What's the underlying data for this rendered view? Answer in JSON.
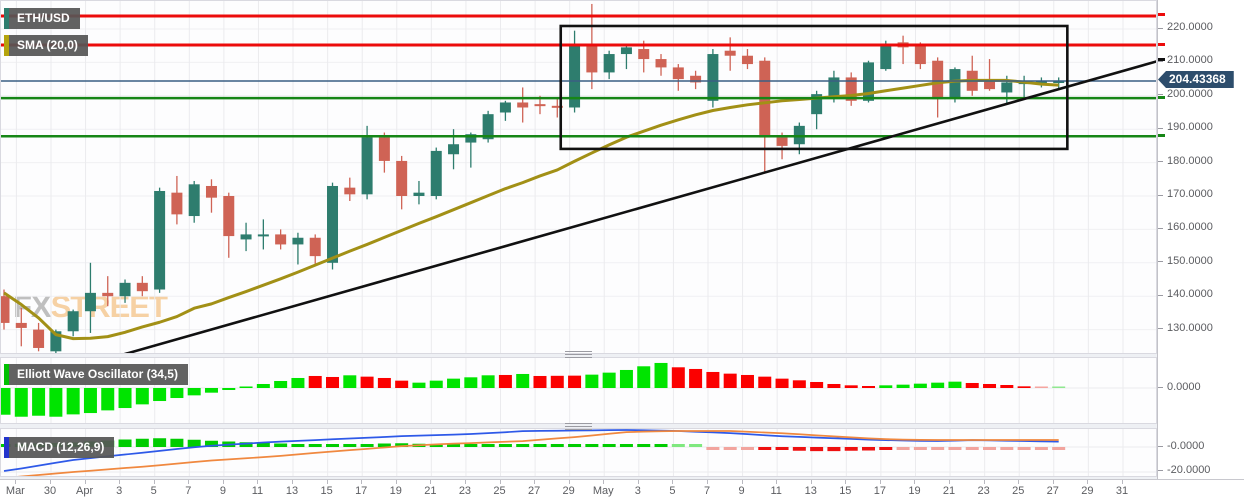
{
  "header": {
    "symbol_badge": "ETH/USD",
    "sma_badge": "SMA (20,0)"
  },
  "watermark": {
    "part1": "FX",
    "part2": "STREET"
  },
  "price_badge": "204.43368",
  "panels": {
    "ewo_label": "Elliott Wave Oscillator (34,5)",
    "macd_label": "MACD (12,26,9)"
  },
  "colors": {
    "up": "#2e7d6e",
    "down": "#cf6355",
    "sma": "#a29016",
    "level_red": "#ec0b0b",
    "level_green": "#168616",
    "level_blue": "#3a5f84",
    "trend": "#111111",
    "box": "#111111",
    "ewo_up": "#00e400",
    "ewo_down": "#fb0000",
    "ewo_light_up": "#90e890",
    "ewo_light_down": "#f5a5a0",
    "macd_line": "#2e59e8",
    "signal_line": "#f0883f",
    "hist_up": "#00cc00",
    "hist_light_up": "#7fe87f",
    "hist_down": "#ee1010",
    "hist_light_down": "#f2a49e",
    "grid": "#ebebee",
    "badge_bg": "#565656",
    "price_badge_bg": "#2d4d6c",
    "watermark_fx": "#b0b0b0",
    "watermark_street": "#f5c78e"
  },
  "chart_data": {
    "type": "candlestick",
    "symbol": "ETH/USD",
    "title": "ETH/USD daily chart with SMA(20), Elliott Wave Oscillator (34,5) and MACD (12,26,9)",
    "x_labels": [
      "Mar",
      "30",
      "Apr",
      "3",
      "5",
      "7",
      "9",
      "11",
      "13",
      "15",
      "17",
      "19",
      "21",
      "23",
      "25",
      "27",
      "29",
      "May",
      "3",
      "5",
      "7",
      "9",
      "11",
      "13",
      "15",
      "17",
      "19",
      "21",
      "23",
      "25",
      "27",
      "29",
      "31"
    ],
    "y_ticks": [
      220,
      210,
      200,
      190,
      180,
      170,
      160,
      150,
      140,
      130
    ],
    "y_tick_decimals": 4,
    "ylim": [
      122.5,
      228.4
    ],
    "current_price": 204.43368,
    "candles": [
      [
        140,
        142,
        130,
        132
      ],
      [
        132,
        136.5,
        125,
        130.5
      ],
      [
        130,
        132,
        123.5,
        124.5
      ],
      [
        123.5,
        130,
        122.5,
        129.5
      ],
      [
        129.5,
        136,
        128,
        135.5
      ],
      [
        135.5,
        150,
        129,
        141
      ],
      [
        141,
        146,
        137,
        140
      ],
      [
        140,
        145,
        138,
        144
      ],
      [
        144,
        146,
        140,
        141.5
      ],
      [
        142,
        172.5,
        141,
        171.5
      ],
      [
        171,
        176,
        161.5,
        164.5
      ],
      [
        164,
        174.5,
        162,
        173.5
      ],
      [
        173,
        175,
        165,
        169.5
      ],
      [
        170,
        171,
        151.5,
        158
      ],
      [
        157,
        162,
        153.5,
        158.5
      ],
      [
        158,
        163,
        154,
        158.5
      ],
      [
        158.5,
        160,
        154,
        155.5
      ],
      [
        155.5,
        159,
        149.5,
        157.5
      ],
      [
        157.5,
        158.5,
        149,
        152
      ],
      [
        150,
        174,
        148,
        173
      ],
      [
        172.5,
        175.5,
        168.5,
        170.5
      ],
      [
        170.5,
        191,
        169,
        187.5
      ],
      [
        187.5,
        189,
        177,
        180.5
      ],
      [
        180.5,
        182,
        166,
        170
      ],
      [
        170,
        174.5,
        167.5,
        171
      ],
      [
        170,
        184.5,
        169,
        183.5
      ],
      [
        182.5,
        190,
        178,
        185.5
      ],
      [
        186,
        189,
        178.5,
        188.5
      ],
      [
        187,
        195.5,
        186,
        194.5
      ],
      [
        195,
        198.5,
        192.5,
        198
      ],
      [
        198,
        202.5,
        192,
        196.5
      ],
      [
        197.5,
        200,
        194.5,
        197
      ],
      [
        197,
        199.5,
        193.5,
        196.5
      ],
      [
        196.5,
        219.5,
        195,
        215.5
      ],
      [
        215.5,
        227.5,
        202,
        207
      ],
      [
        207,
        213.5,
        205,
        212.5
      ],
      [
        212.5,
        215.5,
        208,
        214.5
      ],
      [
        214,
        216.5,
        207,
        211
      ],
      [
        211,
        212.5,
        206,
        208.5
      ],
      [
        208.5,
        209.5,
        201.5,
        205
      ],
      [
        206,
        207.5,
        202,
        204
      ],
      [
        198.5,
        214,
        196.5,
        212.5
      ],
      [
        213.5,
        217.5,
        207.5,
        212
      ],
      [
        212,
        214,
        208,
        209.5
      ],
      [
        210.5,
        211.5,
        177,
        187.5
      ],
      [
        187.5,
        189,
        181,
        185
      ],
      [
        185.5,
        192,
        182.5,
        191
      ],
      [
        194.5,
        201.5,
        190,
        200.5
      ],
      [
        199.5,
        207.5,
        198,
        205.5
      ],
      [
        205.5,
        207,
        197,
        198.5
      ],
      [
        198.5,
        210.5,
        198,
        210
      ],
      [
        208,
        216.5,
        207.5,
        215.5
      ],
      [
        216,
        218,
        209.5,
        214.5
      ],
      [
        215.5,
        216,
        208,
        209.5
      ],
      [
        210.5,
        211.5,
        193.5,
        199
      ],
      [
        199.5,
        208.5,
        198,
        208
      ],
      [
        207.5,
        212,
        200,
        201.5
      ],
      [
        205,
        211,
        201.5,
        202
      ],
      [
        201,
        206,
        197.5,
        204
      ],
      [
        203.5,
        206,
        199,
        204.5
      ],
      [
        204,
        205.5,
        202.5,
        204.4
      ],
      [
        204,
        205.5,
        202,
        204.43
      ]
    ],
    "sma_values": [
      141,
      137.5,
      133.5,
      128.5,
      127.3,
      127.4,
      127.9,
      129.2,
      130.8,
      132.2,
      133.9,
      136.4,
      137.7,
      139.6,
      141.4,
      143.3,
      145.2,
      147.2,
      149.3,
      151.4,
      153.5,
      155.5,
      157.6,
      159.7,
      161.8,
      163.8,
      165.9,
      168.0,
      170.1,
      172.2,
      174.0,
      176.0,
      177.8,
      180.4,
      182.9,
      185.3,
      187.6,
      189.4,
      191.2,
      192.8,
      194.3,
      195.6,
      196.5,
      197.3,
      197.9,
      198.5,
      198.9,
      199.3,
      199.7,
      200.1,
      200.7,
      201.5,
      202.3,
      203.1,
      203.9,
      204.4,
      204.6,
      204.6,
      204.6,
      204.1,
      203.5,
      203.2
    ],
    "levels": [
      {
        "price": 223.9,
        "color": "level_red",
        "width": 3
      },
      {
        "price": 215.2,
        "color": "level_red",
        "width": 3
      },
      {
        "price": 204.43,
        "color": "level_blue",
        "width": 1.5
      },
      {
        "price": 199.3,
        "color": "level_green",
        "width": 2.5
      },
      {
        "price": 187.9,
        "color": "level_green",
        "width": 2.5
      }
    ],
    "trendline": {
      "d1": 6.8,
      "p1": 122.4,
      "d2": 66.8,
      "p2": 210.5
    },
    "box": {
      "d1": 32.2,
      "d2": 61.5,
      "p_top": 220.9,
      "p_bottom": 184.1
    },
    "ewo": {
      "label": "Elliott Wave Oscillator (34,5)",
      "axis_label": "0.0000",
      "values": [
        -8.0,
        -8.6,
        -8.3,
        -8.6,
        -7.9,
        -7.5,
        -6.7,
        -6.0,
        -4.9,
        -3.9,
        -3.0,
        -2.2,
        -1.4,
        -0.6,
        0.3,
        1.2,
        2.1,
        3.0,
        3.6,
        3.3,
        3.8,
        3.4,
        3.0,
        2.2,
        1.6,
        2.2,
        2.8,
        3.2,
        3.8,
        3.9,
        4.2,
        3.6,
        3.65,
        3.7,
        4.0,
        4.6,
        5.4,
        6.5,
        7.5,
        6.2,
        5.7,
        4.8,
        4.3,
        3.9,
        3.4,
        2.8,
        2.3,
        1.8,
        1.2,
        0.8,
        0.6,
        0.8,
        1.0,
        1.3,
        1.6,
        1.9,
        1.5,
        1.2,
        0.9,
        0.5,
        0.3,
        0.25
      ],
      "colors": [
        "g",
        "g",
        "g",
        "g",
        "g",
        "g",
        "g",
        "g",
        "g",
        "g",
        "g",
        "g",
        "g",
        "g",
        "g",
        "g",
        "g",
        "g",
        "r",
        "r",
        "g",
        "r",
        "r",
        "r",
        "g",
        "g",
        "g",
        "g",
        "g",
        "r",
        "g",
        "r",
        "r",
        "r",
        "g",
        "g",
        "g",
        "g",
        "g",
        "r",
        "r",
        "r",
        "r",
        "r",
        "r",
        "r",
        "r",
        "r",
        "r",
        "r",
        "r",
        "g",
        "g",
        "g",
        "g",
        "g",
        "r",
        "r",
        "r",
        "r",
        "lr",
        "lg"
      ]
    },
    "macd": {
      "label": "MACD (12,26,9)",
      "axis_labels": [
        "-0.0000",
        "-20.0000"
      ],
      "axis_values": [
        0,
        -20
      ],
      "hist_values": [
        2.4,
        2.6,
        2.8,
        3.2,
        3.6,
        4.4,
        5.2,
        6.0,
        6.6,
        7.0,
        6.6,
        5.8,
        5.0,
        4.4,
        3.8,
        3.2,
        2.8,
        2.4,
        2.0,
        1.8,
        2.0,
        2.4,
        2.8,
        3.0,
        2.6,
        2.2,
        1.8,
        1.4,
        1.2,
        1.4,
        1.8,
        2.0,
        2.1,
        2.2,
        2.4,
        2.2,
        1.8,
        1.4,
        1.0,
        0.5,
        0.2,
        -0.4,
        -0.7,
        -1.1,
        -1.7,
        -2.4,
        -3.0,
        -3.3,
        -3.3,
        -3.0,
        -2.8,
        -2.4,
        -2.0,
        -1.7,
        -1.5,
        -1.4,
        -1.6,
        -1.8,
        -2.0,
        -1.9,
        -1.7,
        -1.5
      ],
      "hist_colors": [
        "g",
        "g",
        "g",
        "g",
        "g",
        "g",
        "g",
        "g",
        "g",
        "g",
        "g",
        "g",
        "g",
        "g",
        "g",
        "g",
        "g",
        "g",
        "g",
        "g",
        "g",
        "g",
        "g",
        "g",
        "g",
        "g",
        "g",
        "g",
        "g",
        "g",
        "g",
        "g",
        "g",
        "g",
        "g",
        "g",
        "g",
        "g",
        "g",
        "lg",
        "lg",
        "lr",
        "lr",
        "lr",
        "r",
        "r",
        "r",
        "r",
        "r",
        "r",
        "r",
        "r",
        "lr",
        "lr",
        "lr",
        "lr",
        "lr",
        "lr",
        "lr",
        "lr",
        "lr",
        "lr"
      ],
      "macd_line": [
        -19.2,
        -17.2,
        -14.9,
        -12.6,
        -10.4,
        -8.9,
        -7.4,
        -6.0,
        -4.6,
        -3.1,
        -1.6,
        -0.2,
        1.0,
        1.9,
        2.7,
        3.6,
        4.3,
        4.9,
        5.5,
        6.2,
        6.8,
        7.4,
        8.0,
        8.7,
        9.1,
        9.5,
        9.9,
        10.4,
        11.1,
        11.8,
        12.7,
        12.9,
        13.0,
        13.2,
        13.3,
        13.5,
        13.6,
        13.4,
        13.1,
        12.8,
        12.2,
        11.7,
        11.1,
        10.3,
        9.4,
        8.6,
        8.1,
        7.5,
        7.0,
        6.5,
        5.9,
        5.5,
        5.2,
        4.9,
        4.8,
        5.1,
        5.5,
        5.3,
        5.0,
        4.8,
        4.5,
        4.3
      ],
      "signal_line": [
        -24.8,
        -23.6,
        -22.4,
        -21.2,
        -20.0,
        -19.0,
        -17.9,
        -16.8,
        -15.8,
        -14.6,
        -13.3,
        -12.0,
        -10.8,
        -9.9,
        -9.0,
        -8.1,
        -7.1,
        -5.9,
        -4.7,
        -3.6,
        -2.5,
        -1.5,
        -0.4,
        0.7,
        1.4,
        2.1,
        2.7,
        3.1,
        3.7,
        4.2,
        4.7,
        5.8,
        6.9,
        7.9,
        9.2,
        10.6,
        11.9,
        12.3,
        12.6,
        12.8,
        12.8,
        12.8,
        12.8,
        12.2,
        11.6,
        11.0,
        10.2,
        9.3,
        8.5,
        7.7,
        6.9,
        6.3,
        5.9,
        5.7,
        5.6,
        5.6,
        5.6,
        5.6,
        5.6,
        5.6,
        5.6,
        5.6
      ]
    }
  }
}
